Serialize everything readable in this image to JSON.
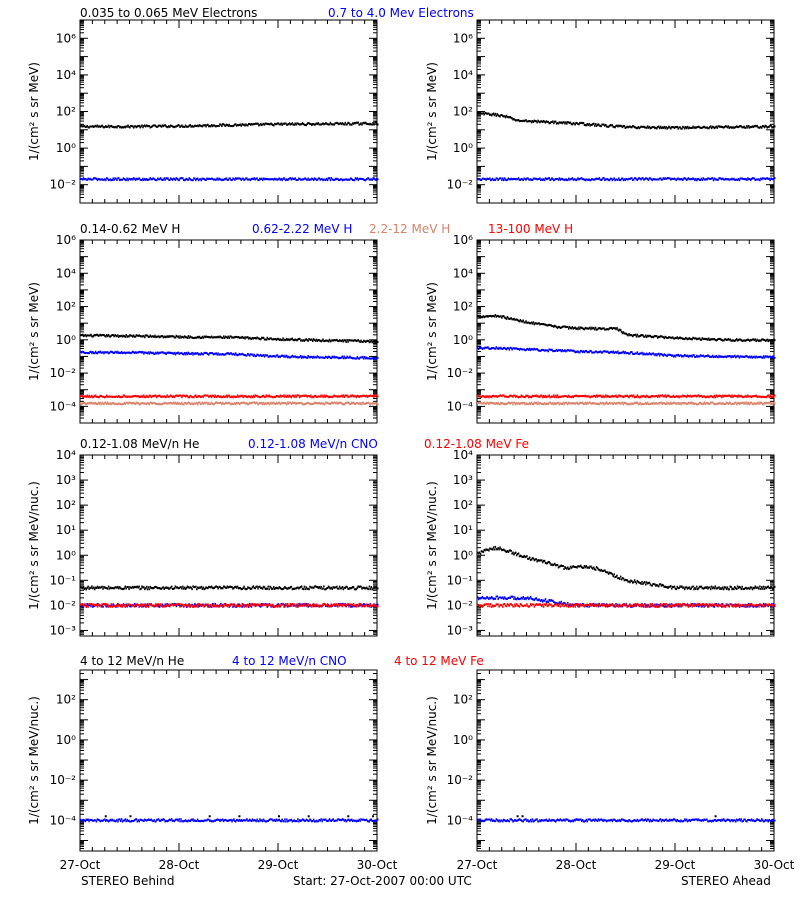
{
  "footer": {
    "left": "STEREO Behind",
    "center": "Start: 27-Oct-2007 00:00 UTC",
    "right": "STEREO Ahead"
  },
  "colors": {
    "black": "#000000",
    "blue": "#0000ff",
    "salmon": "#d9836b",
    "red": "#ff0000"
  },
  "chart_data": [
    {
      "type": "scatter",
      "row_title": [
        {
          "text": "0.035 to 0.065 MeV Electrons",
          "color": "#000000"
        },
        {
          "text": "0.7 to 4.0 Mev Electrons",
          "color": "#0000ff"
        }
      ],
      "ylabel": "1/(cm² s sr MeV)",
      "ylog": true,
      "ylim": [
        0.001,
        10000000
      ],
      "yticks": [
        {
          "v": 0.01,
          "t": "10⁻²"
        },
        {
          "v": 1,
          "t": "10⁰"
        },
        {
          "v": 100,
          "t": "10²"
        },
        {
          "v": 10000,
          "t": "10⁴"
        },
        {
          "v": 1000000,
          "t": "10⁶"
        }
      ],
      "xlim": [
        0,
        3
      ],
      "xticks": [
        "27-Oct",
        "28-Oct",
        "29-Oct",
        "30-Oct"
      ],
      "panels": [
        {
          "name": "STEREO Behind",
          "series": [
            {
              "name": "0.035 to 0.065 MeV Electrons",
              "color": "#000000",
              "x": [
                0,
                0.5,
                1,
                1.5,
                2,
                2.5,
                3
              ],
              "y": [
                15,
                15,
                16,
                18,
                20,
                21,
                22
              ]
            },
            {
              "name": "0.7 to 4.0 Mev Electrons",
              "color": "#0000ff",
              "x": [
                0,
                0.5,
                1,
                1.5,
                2,
                2.5,
                3
              ],
              "y": [
                0.02,
                0.02,
                0.02,
                0.02,
                0.02,
                0.02,
                0.02
              ]
            }
          ]
        },
        {
          "name": "STEREO Ahead",
          "series": [
            {
              "name": "0.035 to 0.065 MeV Electrons",
              "color": "#000000",
              "x": [
                0,
                0.2,
                0.3,
                0.4,
                0.5,
                1,
                1.5,
                2,
                2.5,
                3
              ],
              "y": [
                80,
                65,
                50,
                32,
                30,
                22,
                14,
                13,
                14,
                15
              ]
            },
            {
              "name": "0.7 to 4.0 Mev Electrons",
              "color": "#0000ff",
              "x": [
                0,
                0.5,
                1,
                1.5,
                2,
                2.5,
                3
              ],
              "y": [
                0.02,
                0.02,
                0.02,
                0.02,
                0.02,
                0.02,
                0.02
              ]
            }
          ]
        }
      ]
    },
    {
      "type": "scatter",
      "row_title": [
        {
          "text": "0.14-0.62 MeV H",
          "color": "#000000"
        },
        {
          "text": "0.62-2.22 MeV H",
          "color": "#0000ff"
        },
        {
          "text": "2.2-12 MeV H",
          "color": "#d9836b"
        },
        {
          "text": "13-100 MeV H",
          "color": "#ff0000"
        }
      ],
      "ylabel": "1/(cm² s sr MeV)",
      "ylog": true,
      "ylim": [
        1e-05,
        1000000
      ],
      "yticks": [
        {
          "v": 0.0001,
          "t": "10⁻⁴"
        },
        {
          "v": 0.01,
          "t": "10⁻²"
        },
        {
          "v": 1,
          "t": "10⁰"
        },
        {
          "v": 100,
          "t": "10²"
        },
        {
          "v": 10000,
          "t": "10⁴"
        },
        {
          "v": 1000000,
          "t": "10⁶"
        }
      ],
      "xlim": [
        0,
        3
      ],
      "xticks": [
        "27-Oct",
        "28-Oct",
        "29-Oct",
        "30-Oct"
      ],
      "panels": [
        {
          "name": "STEREO Behind",
          "series": [
            {
              "name": "0.14-0.62 MeV H",
              "color": "#000000",
              "x": [
                0,
                0.5,
                1,
                1.5,
                2,
                2.5,
                3
              ],
              "y": [
                1.8,
                1.7,
                1.5,
                1.4,
                1.1,
                0.9,
                0.8
              ]
            },
            {
              "name": "0.62-2.22 MeV H",
              "color": "#0000ff",
              "x": [
                0,
                0.5,
                1,
                1.5,
                2,
                2.5,
                3
              ],
              "y": [
                0.18,
                0.17,
                0.15,
                0.14,
                0.1,
                0.09,
                0.08
              ]
            },
            {
              "name": "2.2-12 MeV H",
              "color": "#d9836b",
              "x": [
                0,
                0.5,
                1,
                1.5,
                2,
                2.5,
                3
              ],
              "y": [
                0.00015,
                0.00015,
                0.00015,
                0.00015,
                0.00015,
                0.00015,
                0.00015
              ]
            },
            {
              "name": "13-100 MeV H",
              "color": "#ff0000",
              "x": [
                0,
                0.5,
                1,
                1.5,
                2,
                2.5,
                3
              ],
              "y": [
                0.0004,
                0.0004,
                0.0004,
                0.0004,
                0.0004,
                0.0004,
                0.0004
              ]
            }
          ]
        },
        {
          "name": "STEREO Ahead",
          "series": [
            {
              "name": "0.14-0.62 MeV H",
              "color": "#000000",
              "x": [
                0,
                0.2,
                0.4,
                0.6,
                0.8,
                1,
                1.3,
                1.4,
                1.5,
                1.6,
                2,
                2.5,
                3
              ],
              "y": [
                25,
                28,
                15,
                9,
                6,
                5,
                4.5,
                5,
                2,
                1.8,
                1.3,
                1.0,
                0.9
              ]
            },
            {
              "name": "0.62-2.22 MeV H",
              "color": "#0000ff",
              "x": [
                0,
                0.2,
                0.4,
                0.6,
                1,
                1.5,
                2,
                2.5,
                3
              ],
              "y": [
                0.3,
                0.32,
                0.28,
                0.25,
                0.2,
                0.17,
                0.11,
                0.1,
                0.09
              ]
            },
            {
              "name": "2.2-12 MeV H",
              "color": "#d9836b",
              "x": [
                0,
                0.5,
                1,
                1.5,
                2,
                2.5,
                3
              ],
              "y": [
                0.00015,
                0.00015,
                0.00015,
                0.00015,
                0.00015,
                0.00015,
                0.00015
              ]
            },
            {
              "name": "13-100 MeV H",
              "color": "#ff0000",
              "x": [
                0,
                0.5,
                1,
                1.5,
                2,
                2.5,
                3
              ],
              "y": [
                0.0004,
                0.0004,
                0.0004,
                0.0004,
                0.0004,
                0.0004,
                0.0004
              ]
            }
          ]
        }
      ]
    },
    {
      "type": "scatter",
      "row_title": [
        {
          "text": "0.12-1.08 MeV/n He",
          "color": "#000000"
        },
        {
          "text": "0.12-1.08 MeV/n CNO",
          "color": "#0000ff"
        },
        {
          "text": "0.12-1.08 MeV Fe",
          "color": "#ff0000"
        }
      ],
      "ylabel": "1/(cm² s sr MeV/nuc.)",
      "ylog": true,
      "ylim": [
        0.0006,
        10000
      ],
      "yticks": [
        {
          "v": 0.001,
          "t": "10⁻³"
        },
        {
          "v": 0.01,
          "t": "10⁻²"
        },
        {
          "v": 0.1,
          "t": "10⁻¹"
        },
        {
          "v": 1,
          "t": "10⁰"
        },
        {
          "v": 10,
          "t": "10¹"
        },
        {
          "v": 100,
          "t": "10²"
        },
        {
          "v": 1000,
          "t": "10³"
        },
        {
          "v": 10000,
          "t": "10⁴"
        }
      ],
      "xlim": [
        0,
        3
      ],
      "xticks": [
        "27-Oct",
        "28-Oct",
        "29-Oct",
        "30-Oct"
      ],
      "panels": [
        {
          "name": "STEREO Behind",
          "series": [
            {
              "name": "0.12-1.08 MeV/n He",
              "color": "#000000",
              "x": [
                0,
                0.5,
                1,
                1.5,
                2,
                2.5,
                3
              ],
              "y": [
                0.05,
                0.05,
                0.05,
                0.05,
                0.05,
                0.05,
                0.05
              ]
            },
            {
              "name": "0.12-1.08 MeV/n CNO",
              "color": "#0000ff",
              "x": [
                0,
                0.5,
                1,
                1.5,
                2,
                2.5,
                3
              ],
              "y": [
                0.01,
                0.01,
                0.01,
                0.01,
                0.01,
                0.01,
                0.01
              ]
            },
            {
              "name": "0.12-1.08 MeV Fe",
              "color": "#ff0000",
              "x": [
                0,
                0.5,
                1,
                1.5,
                2,
                2.5,
                3
              ],
              "y": [
                0.01,
                0.01,
                0.01,
                0.01,
                0.01,
                0.01,
                0.01
              ]
            }
          ]
        },
        {
          "name": "STEREO Ahead",
          "series": [
            {
              "name": "0.12-1.08 MeV/n He",
              "color": "#000000",
              "x": [
                0,
                0.1,
                0.2,
                0.3,
                0.5,
                0.7,
                0.9,
                1.0,
                1.2,
                1.5,
                2,
                3
              ],
              "y": [
                1.2,
                1.6,
                2.0,
                1.5,
                0.8,
                0.5,
                0.3,
                0.35,
                0.3,
                0.1,
                0.05,
                0.05
              ]
            },
            {
              "name": "0.12-1.08 MeV/n CNO",
              "color": "#0000ff",
              "x": [
                0,
                0.5,
                1,
                1.5,
                2,
                2.5,
                3
              ],
              "y": [
                0.02,
                0.02,
                0.01,
                0.01,
                0.01,
                0.01,
                0.01
              ]
            },
            {
              "name": "0.12-1.08 MeV Fe",
              "color": "#ff0000",
              "x": [
                0,
                0.5,
                1,
                1.5,
                2,
                2.5,
                3
              ],
              "y": [
                0.01,
                0.01,
                0.01,
                0.01,
                0.01,
                0.01,
                0.01
              ]
            }
          ]
        }
      ]
    },
    {
      "type": "scatter",
      "row_title": [
        {
          "text": "4 to 12 MeV/n He",
          "color": "#000000"
        },
        {
          "text": "4 to 12 MeV/n CNO",
          "color": "#0000ff"
        },
        {
          "text": "4 to 12 MeV Fe",
          "color": "#ff0000"
        }
      ],
      "ylabel": "1/(cm² s sr MeV/nuc.)",
      "ylog": true,
      "ylim": [
        3e-06,
        3000
      ],
      "yticks": [
        {
          "v": 0.0001,
          "t": "10⁻⁴"
        },
        {
          "v": 0.01,
          "t": "10⁻²"
        },
        {
          "v": 1,
          "t": "10⁰"
        },
        {
          "v": 100,
          "t": "10²"
        }
      ],
      "xlim": [
        0,
        3
      ],
      "xticks": [
        "27-Oct",
        "28-Oct",
        "29-Oct",
        "30-Oct"
      ],
      "panels": [
        {
          "name": "STEREO Behind",
          "series": [
            {
              "name": "4 to 12 MeV/n He",
              "color": "#000000",
              "x": [
                0.25,
                0.5,
                1.3,
                1.6,
                2.0,
                2.3,
                2.7,
                2.95
              ],
              "y": [
                0.00016,
                0.00016,
                0.00016,
                0.00016,
                0.00016,
                0.00016,
                0.00016,
                0.00016
              ]
            },
            {
              "name": "4 to 12 MeV/n CNO",
              "color": "#0000ff",
              "x": [
                0,
                0.5,
                1,
                1.5,
                2,
                2.5,
                3
              ],
              "y": [
                0.0001,
                0.0001,
                0.0001,
                0.0001,
                0.0001,
                0.0001,
                0.0001
              ]
            }
          ]
        },
        {
          "name": "STEREO Ahead",
          "series": [
            {
              "name": "4 to 12 MeV/n He",
              "color": "#000000",
              "x": [
                0.4,
                0.45,
                2.4
              ],
              "y": [
                0.00016,
                0.00016,
                0.00016
              ]
            },
            {
              "name": "4 to 12 MeV/n CNO",
              "color": "#0000ff",
              "x": [
                0,
                0.5,
                1,
                1.5,
                2,
                2.5,
                3
              ],
              "y": [
                0.0001,
                0.0001,
                0.0001,
                0.0001,
                0.0001,
                0.0001,
                0.0001
              ]
            }
          ]
        }
      ]
    }
  ]
}
